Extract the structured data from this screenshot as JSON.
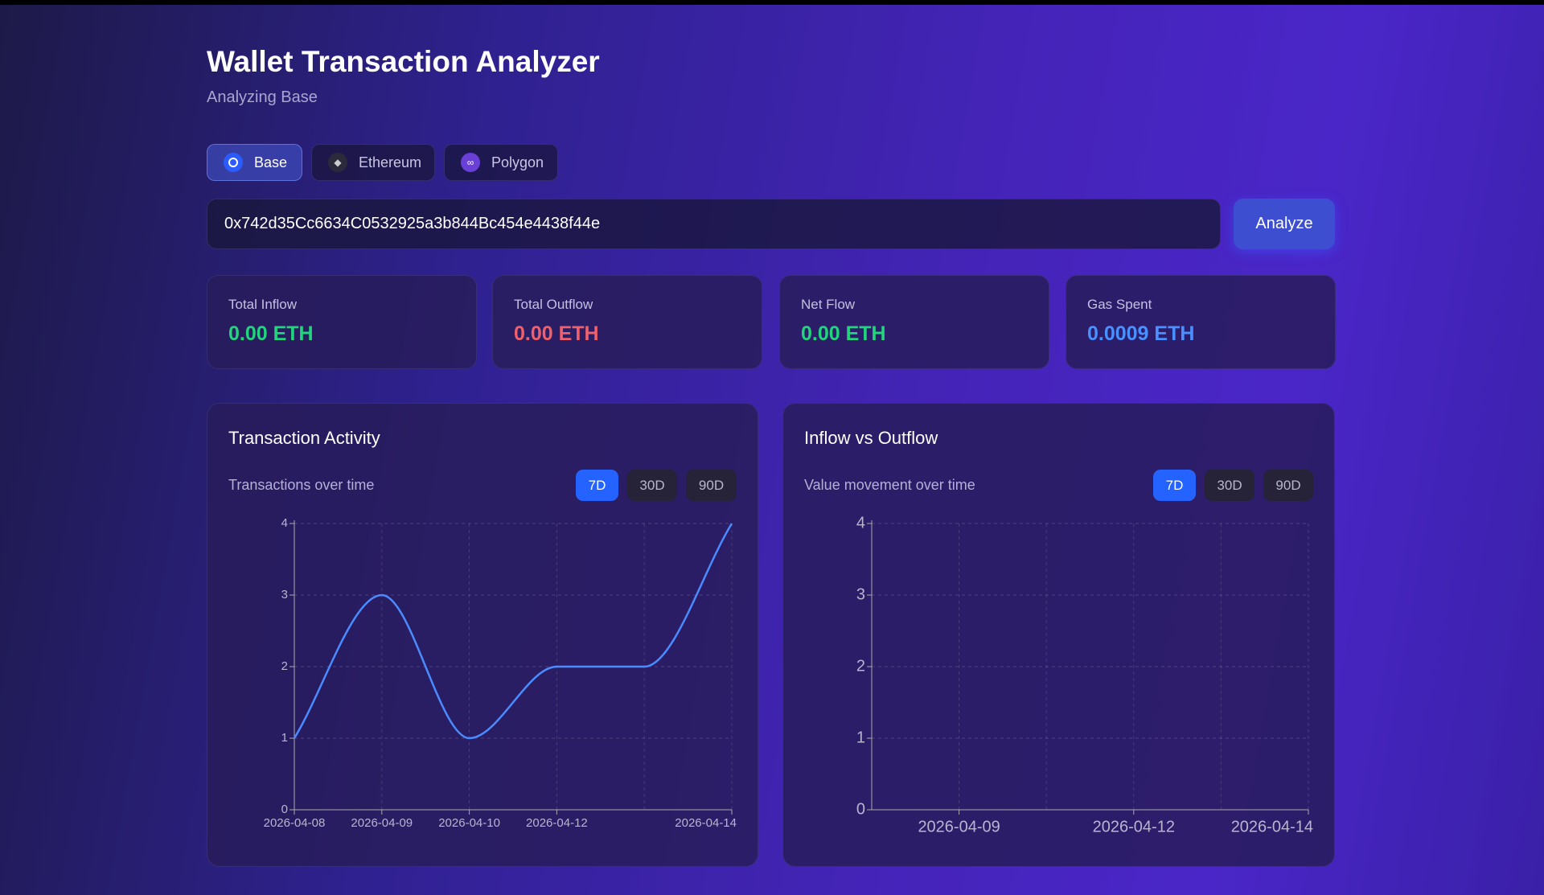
{
  "header": {
    "title": "Wallet Transaction Analyzer",
    "subtitle": "Analyzing Base"
  },
  "networks": [
    "Base",
    "Ethereum",
    "Polygon"
  ],
  "address": "0x742d35Cc6634C0532925a3b844Bc454e4438f44e",
  "analyze_button": "Analyze",
  "stats": [
    {
      "label": "Total Inflow",
      "value": "0.00 ETH",
      "color": "#22d47e"
    },
    {
      "label": "Total Outflow",
      "value": "0.00 ETH",
      "color": "#f0606a"
    },
    {
      "label": "Net Flow",
      "value": "0.00 ETH",
      "color": "#22d47e"
    },
    {
      "label": "Gas Spent",
      "value": "0.0009 ETH",
      "color": "#4a90ff"
    }
  ],
  "chart_data": [
    {
      "type": "line",
      "title": "Transaction Activity",
      "subtitle": "Transactions over time",
      "ranges": [
        "7D",
        "30D",
        "90D"
      ],
      "categories": [
        "2026-04-08",
        "2026-04-09",
        "2026-04-10",
        "2026-04-12",
        null,
        "2026-04-14"
      ],
      "values": [
        1,
        3,
        1,
        2,
        2,
        4
      ],
      "color": "#4a8cff",
      "ylim": [
        0,
        4
      ],
      "yticks": [
        0,
        1,
        2,
        3,
        4
      ],
      "grid": true
    },
    {
      "type": "area",
      "title": "Inflow vs Outflow",
      "subtitle": "Value movement over time",
      "ranges": [
        "7D",
        "30D",
        "90D"
      ],
      "categories": [
        null,
        "2026-04-09",
        null,
        "2026-04-12",
        null,
        "2026-04-14"
      ],
      "ylim": [
        0,
        4
      ],
      "yticks": [
        0,
        1,
        2,
        3,
        4
      ],
      "grid": true
    }
  ]
}
